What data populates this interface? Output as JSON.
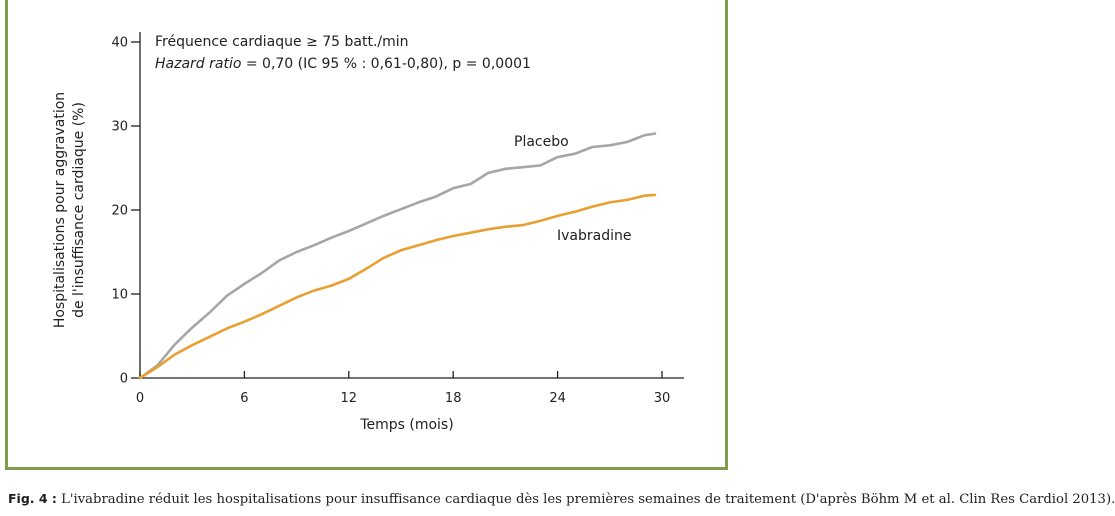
{
  "chart_data": {
    "type": "line",
    "annotation_line1": "Fréquence cardiaque ≥ 75 batt./min",
    "annotation_line2_italic": "Hazard ratio",
    "annotation_line2_rest": " = 0,70 (IC 95 % : 0,61-0,80), p = 0,0001",
    "xlabel": "Temps (mois)",
    "ylabel_line1": "Hospitalisations pour aggravation",
    "ylabel_line2": "de l'insuffisance cardiaque (%)",
    "xlim": [
      0,
      30
    ],
    "ylim": [
      0,
      40
    ],
    "x_ticks": [
      0,
      6,
      12,
      18,
      24,
      30
    ],
    "y_ticks": [
      0,
      10,
      20,
      30,
      40
    ],
    "grid": false,
    "series": [
      {
        "name": "Placebo",
        "color": "#a6a6a6",
        "x": [
          0,
          1,
          2,
          3,
          4,
          5,
          6,
          7,
          8,
          9,
          10,
          11,
          12,
          13,
          14,
          15,
          16,
          17,
          18,
          19,
          20,
          21,
          22,
          23,
          24,
          25,
          26,
          27,
          28,
          29,
          29.6
        ],
        "y": [
          0,
          1.5,
          4.0,
          6.0,
          7.8,
          9.8,
          11.2,
          12.5,
          14.0,
          15.0,
          15.8,
          16.7,
          17.5,
          18.4,
          19.3,
          20.1,
          20.9,
          21.6,
          22.6,
          23.1,
          24.4,
          24.9,
          25.1,
          25.3,
          26.3,
          26.7,
          27.5,
          27.7,
          28.1,
          28.9,
          29.1
        ]
      },
      {
        "name": "Ivabradine",
        "color": "#e8a032",
        "x": [
          0,
          1,
          2,
          3,
          4,
          5,
          6,
          7,
          8,
          9,
          10,
          11,
          12,
          13,
          14,
          15,
          16,
          17,
          18,
          19,
          20,
          21,
          22,
          23,
          24,
          25,
          26,
          27,
          28,
          29,
          29.6
        ],
        "y": [
          0,
          1.3,
          2.8,
          3.9,
          4.9,
          5.9,
          6.7,
          7.6,
          8.6,
          9.6,
          10.4,
          11.0,
          11.8,
          13.0,
          14.3,
          15.2,
          15.8,
          16.4,
          16.9,
          17.3,
          17.7,
          18.0,
          18.2,
          18.7,
          19.3,
          19.8,
          20.4,
          20.9,
          21.2,
          21.7,
          21.8
        ]
      }
    ]
  },
  "caption": {
    "label": "Fig. 4 :",
    "text": " L'ivabradine réduit les hospitalisations pour insuffisance cardiaque dès les premières semaines de traitement (D'après Böhm M et al. Clin Res Cardiol 2013)."
  }
}
